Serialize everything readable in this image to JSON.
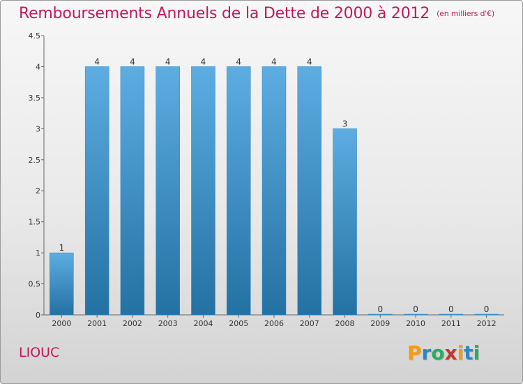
{
  "header": {
    "title": "Remboursements Annuels de la Dette de 2000 à 2012",
    "unit": "(en milliers d'€)"
  },
  "footer": {
    "commune": "LIOUC",
    "logo_text": "Proxiti",
    "logo_colors": [
      "#f39c12",
      "#2e86c1",
      "#27ae60",
      "#c0392b",
      "#f39c12",
      "#2e86c1",
      "#27ae60"
    ]
  },
  "chart_data": {
    "type": "bar",
    "categories": [
      "2000",
      "2001",
      "2002",
      "2003",
      "2004",
      "2005",
      "2006",
      "2007",
      "2008",
      "2009",
      "2010",
      "2011",
      "2012"
    ],
    "values": [
      1,
      4,
      4,
      4,
      4,
      4,
      4,
      4,
      3,
      0,
      0,
      0,
      0
    ],
    "data_labels": [
      "1",
      "4",
      "4",
      "4",
      "4",
      "4",
      "4",
      "4",
      "3",
      "0",
      "0",
      "0",
      "0"
    ],
    "yticks": [
      "0",
      "0.5",
      "1",
      "1.5",
      "2",
      "2.5",
      "3",
      "3.5",
      "4",
      "4.5"
    ],
    "ylim": [
      0,
      4.5
    ],
    "grid": false,
    "bar_color_top": "#5dade2",
    "bar_color_bottom": "#2471a3"
  }
}
